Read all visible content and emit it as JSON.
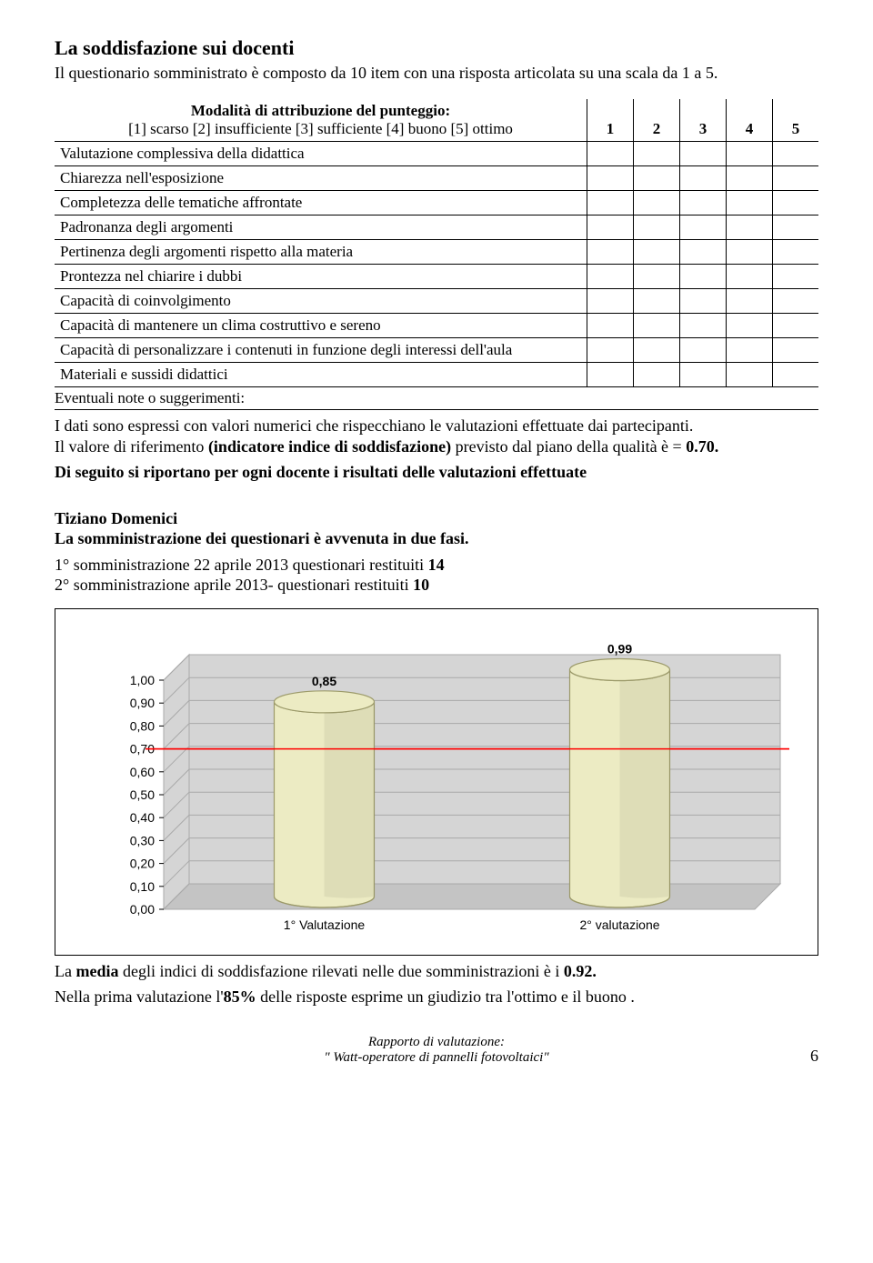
{
  "title": "La soddisfazione sui docenti",
  "intro": "Il questionario somministrato è composto da 10 item con una  risposta articolata su una scala da 1 a 5.",
  "table": {
    "header_line1": "Modalità di attribuzione del punteggio:",
    "header_line2": "[1] scarso   [2] insufficiente   [3] sufficiente   [4] buono   [5] ottimo",
    "cols": [
      "1",
      "2",
      "3",
      "4",
      "5"
    ],
    "rows": [
      "Valutazione complessiva della didattica",
      "Chiarezza nell'esposizione",
      "Completezza delle tematiche affrontate",
      "Padronanza degli argomenti",
      "Pertinenza degli argomenti rispetto alla materia",
      "Prontezza nel chiarire i dubbi",
      "Capacità di coinvolgimento",
      "Capacità di mantenere un clima costruttivo e  sereno",
      "Capacità di personalizzare i contenuti in funzione degli interessi dell'aula",
      "Materiali e sussidi didattici"
    ],
    "note": "Eventuali note o suggerimenti:"
  },
  "para1a": "I dati sono espressi con valori numerici che rispecchiano le valutazioni effettuate dai partecipanti.",
  "para1b_pre": "Il valore di riferimento ",
  "para1b_bold": "(indicatore indice di soddisfazione)",
  "para1b_post": "  previsto dal piano della qualità è =  ",
  "para1b_val": "0.70.",
  "para2": "Di seguito si riportano per ogni docente i risultati delle valutazioni effettuate",
  "teacher": "Tiziano Domenici",
  "admin_line": "La somministrazione dei questionari è avvenuta in due fasi.",
  "admin1_pre": "1° somministrazione 22 aprile  2013 questionari restituiti ",
  "admin1_n": "14",
  "admin2_pre": "2° somministrazione  aprile 2013- questionari restituiti ",
  "admin2_n": "10",
  "chart": {
    "type": "3d-cylinder-bar",
    "categories": [
      "1° Valutazione",
      "2° valutazione"
    ],
    "values": [
      0.85,
      0.99
    ],
    "value_labels": [
      "0,85",
      "0,99"
    ],
    "ylim": [
      0,
      1.0
    ],
    "ytick_step": 0.1,
    "yticks": [
      "1,00",
      "0,90",
      "0,80",
      "0,70",
      "0,60",
      "0,50",
      "0,40",
      "0,30",
      "0,20",
      "0,10",
      "0,00"
    ],
    "bar_fill": "#ecebc3",
    "bar_stroke": "#9c9a6a",
    "wall_fill": "#d5d5d5",
    "wall_stroke": "#a9a9a9",
    "floor_fill": "#c4c4c4",
    "threshold": 0.7,
    "threshold_color": "#ff0000",
    "grid_color": "#a9a9a9",
    "label_fontsize": 14,
    "tick_fontsize": 14,
    "value_fontsize": 14,
    "background": "#ffffff"
  },
  "concl1_pre": "La ",
  "concl1_b1": "media",
  "concl1_mid": " degli indici  di soddisfazione rilevati nelle due somministrazioni  è i  ",
  "concl1_b2": "0.92.",
  "concl2_pre": "Nella prima valutazione l'",
  "concl2_b1": "85%",
  "concl2_mid": " delle  risposte  esprime un giudizio tra l'ottimo e il buono .",
  "footer": {
    "line1": "Rapporto di valutazione:",
    "line2": "\" Watt-operatore di pannelli fotovoltaici\"",
    "page": "6"
  }
}
